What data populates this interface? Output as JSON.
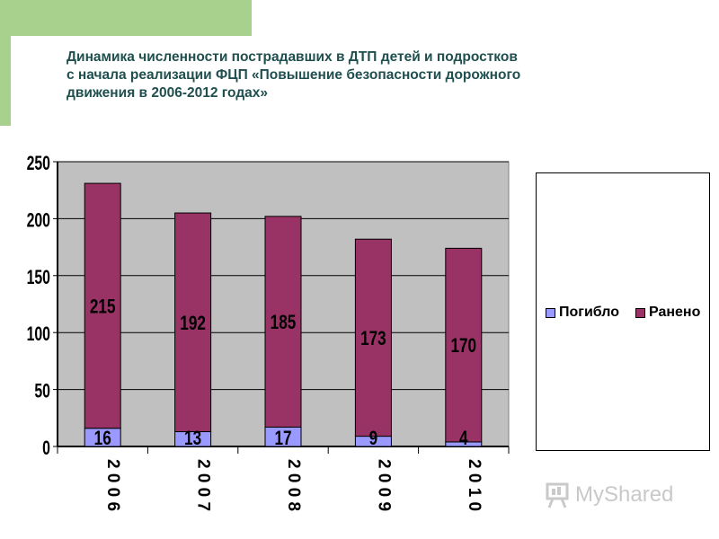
{
  "slide": {
    "title_lines": [
      "Динамика численности пострадавших в ДТП детей и подростков",
      "с начала реализации ФЦП «Повышение безопасности дорожного",
      "движения в 2006-2012 годах»"
    ]
  },
  "chart_data": {
    "type": "bar",
    "stacked": true,
    "categories": [
      "2006",
      "2007",
      "2008",
      "2009",
      "2010"
    ],
    "category_labels_spaced": [
      "2 0 0 6",
      "2 0 0 7",
      "2 0 0 8",
      "2 0 0 9",
      "2 0 1 0"
    ],
    "series": [
      {
        "name": "Погибло",
        "values": [
          16,
          13,
          17,
          9,
          4
        ],
        "color": "#9999ff"
      },
      {
        "name": "Ранено",
        "values": [
          215,
          192,
          185,
          173,
          170
        ],
        "color": "#993366"
      }
    ],
    "ylim": [
      0,
      250
    ],
    "yticks": [
      0,
      50,
      100,
      150,
      200,
      250
    ],
    "grid": true,
    "plot_background": "#c0c0c0",
    "legend_position": "right"
  },
  "watermark": {
    "text": "MyShared",
    "icon": "presentation-board-icon"
  },
  "colors": {
    "accent_green": "#a9d18e",
    "title_color": "#1f4f4f"
  }
}
